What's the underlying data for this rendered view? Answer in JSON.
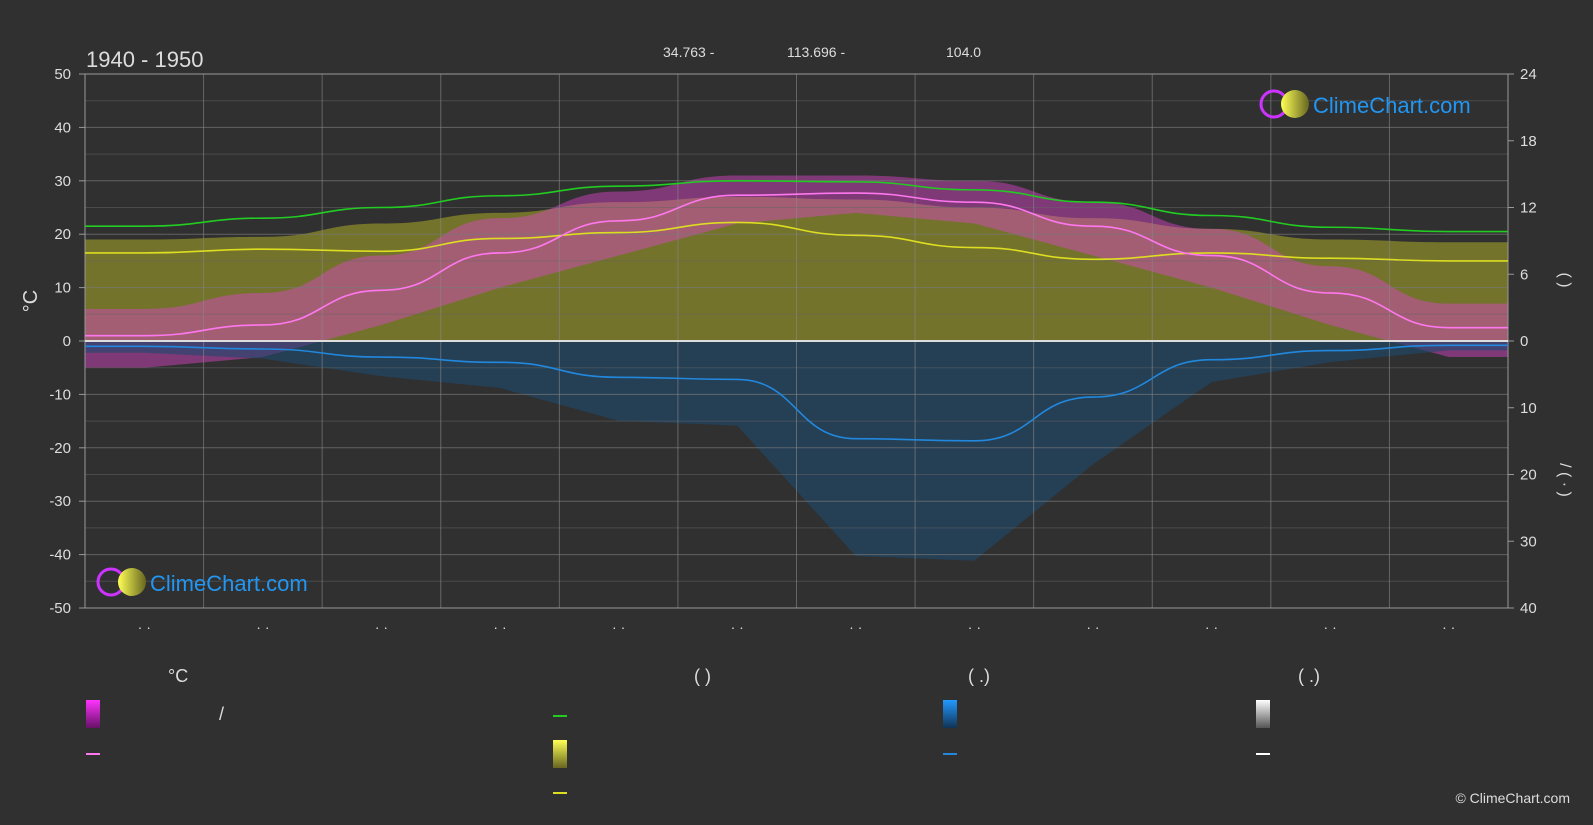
{
  "header": {
    "period": "1940 - 1950",
    "lat": "34.763 -",
    "lon": "113.696 -",
    "elev": "104.0"
  },
  "logo": {
    "text": "ClimeChart.com"
  },
  "copyright": "© ClimeChart.com",
  "axes": {
    "left_label": "°C",
    "right_top_label": "(     )",
    "right_bottom_label": "/   (  ·  )"
  },
  "legend": {
    "col1_header": "°C",
    "col2_header": "(          )",
    "col3_header": "(    .)",
    "col4_header": "(    .)",
    "slash": "/"
  },
  "colors": {
    "background": "#303030",
    "daylight": "#22cc22",
    "sunshine": "#dddd22",
    "mean_temp": "#ff77ee",
    "temp_band": "#dd22dd",
    "precip": "#2288dd",
    "snow": "#dddddd",
    "logo_blue": "#2196f3"
  },
  "chart_data": {
    "type": "line",
    "x": [
      0,
      1,
      2,
      3,
      4,
      5,
      6,
      7,
      8,
      9,
      10,
      11
    ],
    "x_tick_labels": [
      "· ·",
      "· ·",
      "· ·",
      "· ·",
      "· ·",
      "· ·",
      "· ·",
      "· ·",
      "· ·",
      "· ·",
      "· ·",
      "· ·"
    ],
    "ylim_left": [
      -50,
      50
    ],
    "yticks_left": [
      50,
      40,
      30,
      20,
      10,
      0,
      -10,
      -20,
      -30,
      -40,
      -50
    ],
    "yticks_right_top": [
      24,
      18,
      12,
      6,
      0
    ],
    "yticks_right_bottom": [
      0,
      10,
      20,
      30,
      40
    ],
    "grid": true,
    "series": [
      {
        "key": "daylight",
        "values": [
          21.5,
          23.0,
          25.0,
          27.2,
          29.0,
          30.0,
          29.8,
          28.3,
          26.0,
          23.5,
          21.3,
          20.5
        ]
      },
      {
        "key": "sunshine",
        "values": [
          16.5,
          17.2,
          16.8,
          19.2,
          20.3,
          22.2,
          19.8,
          17.5,
          15.3,
          16.5,
          15.5,
          15.0
        ]
      },
      {
        "key": "mean_temp",
        "values": [
          1.0,
          3.0,
          9.5,
          16.5,
          22.5,
          27.3,
          27.7,
          26.0,
          21.5,
          16.0,
          9.0,
          2.5
        ]
      },
      {
        "key": "precip",
        "values": [
          -1.0,
          -1.5,
          -3.0,
          -4.0,
          -6.8,
          -7.2,
          -18.3,
          -18.7,
          -10.5,
          -3.5,
          -1.8,
          -0.8
        ]
      },
      {
        "key": "snow",
        "values": [
          0.0,
          0.0,
          0.0,
          0.0,
          0.0,
          0.0,
          0.0,
          0.0,
          0.0,
          0.0,
          0.0,
          0.0
        ]
      }
    ],
    "temp_band": {
      "max": [
        6,
        9,
        16,
        23,
        28,
        31,
        31,
        30,
        26,
        21,
        14,
        7
      ],
      "min": [
        -5,
        -3,
        3,
        10,
        16,
        22,
        24,
        22,
        16,
        10,
        3,
        -3
      ]
    },
    "sunshine_band_top": [
      19,
      19.5,
      22,
      24,
      26,
      27,
      26.5,
      25,
      23,
      21,
      19,
      18.5
    ]
  }
}
